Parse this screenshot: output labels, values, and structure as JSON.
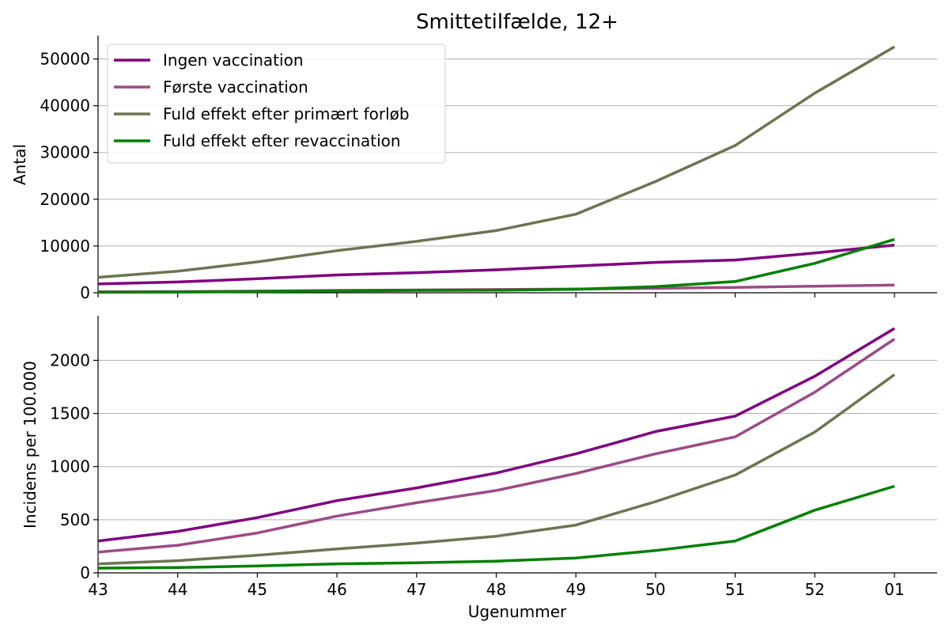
{
  "chart_data": {
    "type": "line",
    "title": "Smittetilfælde, 12+",
    "xlabel": "Ugenummer",
    "categories": [
      "43",
      "44",
      "45",
      "46",
      "47",
      "48",
      "49",
      "50",
      "51",
      "52",
      "01"
    ],
    "legend": {
      "position": "top-left"
    },
    "grid": {
      "y": true,
      "x": false
    },
    "colors": {
      "Ingen vaccination": "#800080",
      "Første vaccination": "#9c4a86",
      "Fuld effekt efter primært forløb": "#6b7552",
      "Fuld effekt efter revaccination": "#008000"
    },
    "panels": [
      {
        "id": "antal",
        "ylabel": "Antal",
        "ylim": [
          0,
          55000
        ],
        "yticks": [
          0,
          10000,
          20000,
          30000,
          40000,
          50000
        ],
        "series": [
          {
            "name": "Ingen vaccination",
            "values": [
              1900,
              2300,
              3000,
              3800,
              4300,
              4900,
              5700,
              6500,
              7000,
              8500,
              10200
            ]
          },
          {
            "name": "Første vaccination",
            "values": [
              200,
              250,
              350,
              500,
              600,
              700,
              800,
              950,
              1150,
              1400,
              1650
            ]
          },
          {
            "name": "Fuld effekt efter primært forløb",
            "values": [
              3300,
              4600,
              6600,
              9000,
              11000,
              13300,
              16800,
              23800,
              31500,
              42700,
              52600
            ]
          },
          {
            "name": "Fuld effekt efter revaccination",
            "values": [
              100,
              150,
              250,
              400,
              500,
              550,
              750,
              1300,
              2400,
              6300,
              11400
            ]
          }
        ]
      },
      {
        "id": "incidens",
        "ylabel": "Incidens per 100.000",
        "ylim": [
          0,
          2420
        ],
        "yticks": [
          0,
          500,
          1000,
          1500,
          2000
        ],
        "series": [
          {
            "name": "Ingen vaccination",
            "values": [
              300,
              390,
              520,
              680,
              800,
              940,
              1120,
              1330,
              1475,
              1850,
              2300
            ]
          },
          {
            "name": "Første vaccination",
            "values": [
              195,
              260,
              375,
              535,
              660,
              775,
              935,
              1120,
              1280,
              1700,
              2200
            ]
          },
          {
            "name": "Fuld effekt efter primært forløb",
            "values": [
              85,
              115,
              165,
              225,
              280,
              345,
              450,
              670,
              920,
              1325,
              1865
            ]
          },
          {
            "name": "Fuld effekt efter revaccination",
            "values": [
              45,
              50,
              65,
              85,
              95,
              110,
              140,
              210,
              300,
              590,
              815
            ]
          }
        ]
      }
    ]
  }
}
